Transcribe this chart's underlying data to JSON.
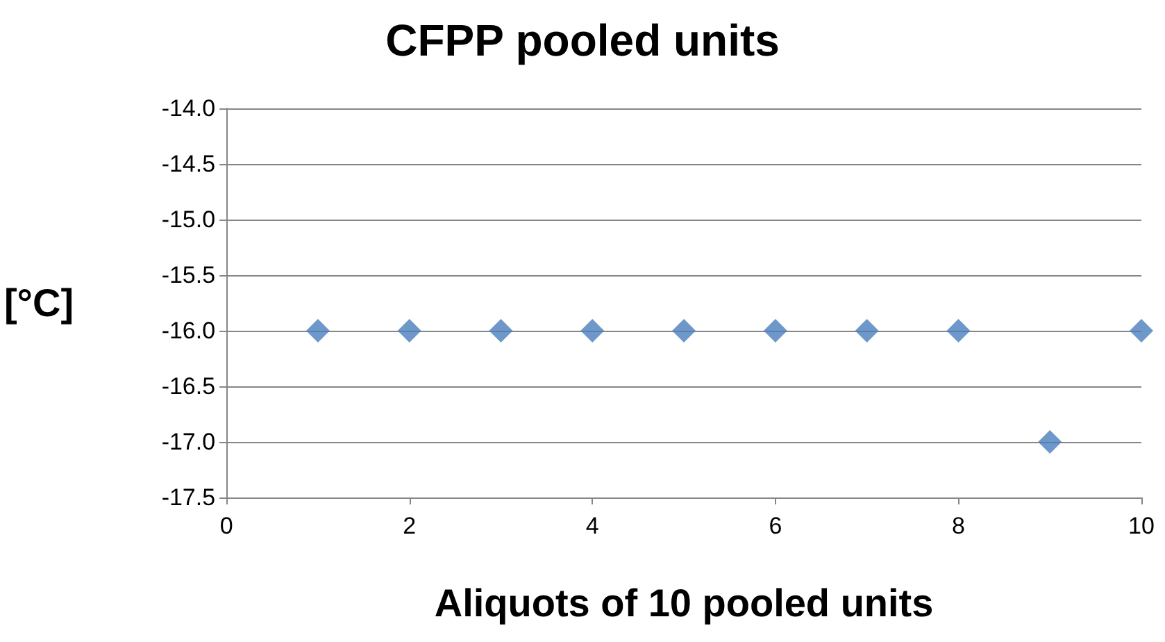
{
  "chart_data": {
    "type": "scatter",
    "title": "CFPP pooled units",
    "xlabel": "Aliquots of 10 pooled units",
    "ylabel": "[°C]",
    "x": [
      1,
      2,
      3,
      4,
      5,
      6,
      7,
      8,
      9,
      10
    ],
    "series": [
      {
        "color": "#4a7ebb",
        "values": [
          -16,
          -16,
          -16,
          -16,
          -16,
          -16,
          -16,
          -16,
          -17,
          -16
        ]
      }
    ],
    "xlim": [
      0,
      10
    ],
    "xticks": [
      0,
      2,
      4,
      6,
      8,
      10
    ],
    "ylim": [
      -17.5,
      -14
    ],
    "yticks": [
      {
        "value": -17.5,
        "label": "-17.5"
      },
      {
        "value": -17,
        "label": "-17.0"
      },
      {
        "value": -16.5,
        "label": "-16.5"
      },
      {
        "value": -16,
        "label": "-16.0"
      },
      {
        "value": -15.5,
        "label": "-15.5"
      },
      {
        "value": -15,
        "label": "-15.0"
      },
      {
        "value": -14.5,
        "label": "-14.5"
      },
      {
        "value": -14,
        "label": "-14.0"
      }
    ],
    "grid": "y",
    "marker": "diamond"
  }
}
